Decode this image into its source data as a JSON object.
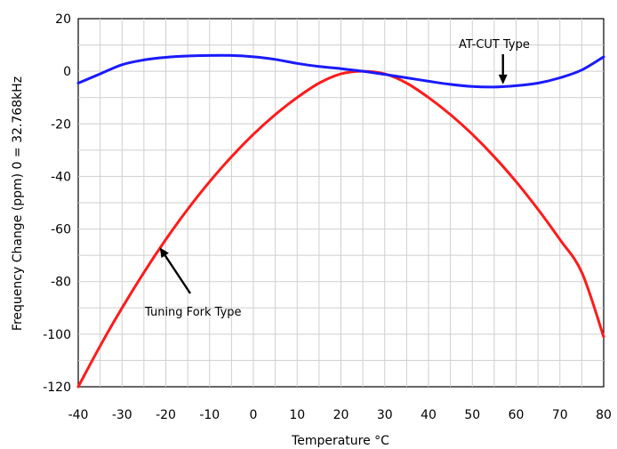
{
  "chart_data": {
    "type": "line",
    "title": "",
    "xlabel": "Temperature °C",
    "ylabel": "Frequency Change (ppm) 0 = 32.768kHz",
    "xlim": [
      -40,
      80
    ],
    "ylim": [
      -120,
      20
    ],
    "x_ticks": [
      -40,
      -30,
      -20,
      -10,
      0,
      10,
      20,
      30,
      40,
      50,
      60,
      70,
      80
    ],
    "y_ticks": [
      20,
      0,
      -20,
      -40,
      -60,
      -80,
      -100,
      -120
    ],
    "grid": true,
    "series": [
      {
        "name": "Tuning Fork Type",
        "color": "#ff1a1a",
        "x": [
          -40,
          -35,
          -30,
          -25,
          -20,
          -15,
          -10,
          -5,
          0,
          5,
          10,
          15,
          20,
          25,
          30,
          35,
          40,
          45,
          50,
          55,
          60,
          65,
          70,
          75,
          80
        ],
        "y": [
          -120,
          -104.5,
          -90,
          -76.5,
          -64,
          -52.5,
          -42,
          -32.5,
          -24,
          -16.5,
          -10,
          -4.5,
          -1,
          0,
          -1,
          -4.5,
          -10,
          -16.5,
          -24,
          -32.5,
          -42,
          -52.5,
          -64,
          -76.5,
          -101
        ]
      },
      {
        "name": "AT-CUT Type",
        "color": "#1a1aff",
        "x": [
          -40,
          -35,
          -30,
          -25,
          -20,
          -15,
          -10,
          -5,
          0,
          5,
          10,
          15,
          20,
          25,
          30,
          35,
          40,
          45,
          50,
          55,
          60,
          65,
          70,
          75,
          80
        ],
        "y": [
          -4.5,
          -1,
          2.5,
          4.3,
          5.3,
          5.8,
          6,
          6,
          5.5,
          4.5,
          3,
          1.8,
          1,
          0,
          -1.2,
          -2.5,
          -3.8,
          -5,
          -5.8,
          -6,
          -5.5,
          -4.5,
          -2.5,
          0.5,
          5.5
        ]
      }
    ],
    "annotations": [
      {
        "text": "AT-CUT Type",
        "target_series": "AT-CUT Type",
        "target_x": 57,
        "target_y": -6
      },
      {
        "text": "Tuning Fork Type",
        "target_series": "Tuning Fork Type",
        "target_x": -22,
        "target_y": -68
      }
    ]
  }
}
